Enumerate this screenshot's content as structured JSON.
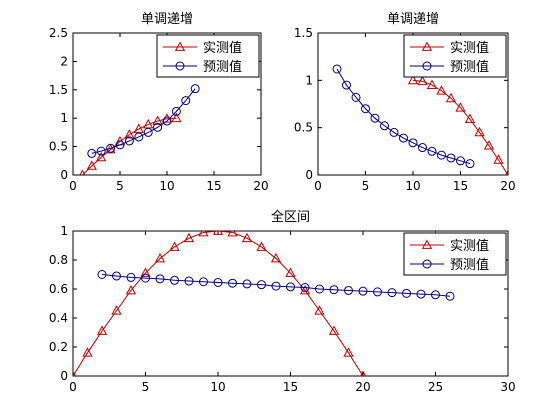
{
  "chart_data": [
    {
      "type": "line",
      "title": "单调递增",
      "xlabel": "",
      "ylabel": "",
      "xlim": [
        0,
        20
      ],
      "ylim": [
        0,
        2.5
      ],
      "xticks": [
        0,
        5,
        10,
        15,
        20
      ],
      "yticks": [
        0,
        0.5,
        1,
        1.5,
        2,
        2.5
      ],
      "legend": "top-right",
      "grid": false,
      "series": [
        {
          "name": "实测值",
          "color": "#c00000",
          "marker": "triangle",
          "x": [
            1,
            2,
            3,
            4,
            5,
            6,
            7,
            8,
            9,
            10,
            11
          ],
          "y": [
            0.0,
            0.16,
            0.31,
            0.45,
            0.59,
            0.71,
            0.81,
            0.89,
            0.95,
            0.99,
            1.0
          ]
        },
        {
          "name": "预测值",
          "color": "#000080",
          "marker": "circle",
          "x": [
            2,
            3,
            4,
            5,
            6,
            7,
            8,
            9,
            10,
            11,
            12,
            13
          ],
          "y": [
            0.38,
            0.42,
            0.47,
            0.53,
            0.6,
            0.67,
            0.75,
            0.84,
            0.95,
            1.12,
            1.31,
            1.52
          ]
        }
      ]
    },
    {
      "type": "line",
      "title": "单调递增",
      "xlabel": "",
      "ylabel": "",
      "xlim": [
        0,
        20
      ],
      "ylim": [
        0,
        1.5
      ],
      "xticks": [
        0,
        5,
        10,
        15,
        20
      ],
      "yticks": [
        0,
        0.5,
        1,
        1.5
      ],
      "legend": "top-right",
      "grid": false,
      "series": [
        {
          "name": "实测值",
          "color": "#c00000",
          "marker": "triangle",
          "x": [
            10,
            11,
            12,
            13,
            14,
            15,
            16,
            17,
            18,
            19,
            20
          ],
          "y": [
            1.0,
            0.99,
            0.95,
            0.89,
            0.81,
            0.71,
            0.59,
            0.45,
            0.31,
            0.16,
            0.0
          ]
        },
        {
          "name": "预测值",
          "color": "#000080",
          "marker": "circle",
          "x": [
            2,
            3,
            4,
            5,
            6,
            7,
            8,
            9,
            10,
            11,
            12,
            13,
            14,
            15,
            16
          ],
          "y": [
            1.12,
            0.95,
            0.82,
            0.7,
            0.6,
            0.52,
            0.45,
            0.39,
            0.34,
            0.29,
            0.25,
            0.21,
            0.18,
            0.15,
            0.12
          ]
        }
      ]
    },
    {
      "type": "line",
      "title": "全区间",
      "xlabel": "",
      "ylabel": "",
      "xlim": [
        0,
        30
      ],
      "ylim": [
        0,
        1
      ],
      "xticks": [
        0,
        5,
        10,
        15,
        20,
        25,
        30
      ],
      "yticks": [
        0,
        0.2,
        0.4,
        0.6,
        0.8,
        1
      ],
      "legend": "top-right",
      "grid": false,
      "series": [
        {
          "name": "实测值",
          "color": "#c00000",
          "marker": "triangle",
          "x": [
            0,
            1,
            2,
            3,
            4,
            5,
            6,
            7,
            8,
            9,
            10,
            11,
            12,
            13,
            14,
            15,
            16,
            17,
            18,
            19,
            20
          ],
          "y": [
            0.0,
            0.16,
            0.31,
            0.45,
            0.59,
            0.71,
            0.81,
            0.89,
            0.95,
            0.99,
            1.0,
            0.99,
            0.95,
            0.89,
            0.81,
            0.71,
            0.59,
            0.45,
            0.31,
            0.16,
            0.0
          ]
        },
        {
          "name": "预测值",
          "color": "#000080",
          "marker": "circle",
          "x": [
            2,
            3,
            4,
            5,
            6,
            7,
            8,
            9,
            10,
            11,
            12,
            13,
            14,
            15,
            16,
            17,
            18,
            19,
            20,
            21,
            22,
            23,
            24,
            25,
            26
          ],
          "y": [
            0.7,
            0.69,
            0.68,
            0.675,
            0.67,
            0.66,
            0.655,
            0.65,
            0.645,
            0.64,
            0.635,
            0.63,
            0.62,
            0.615,
            0.61,
            0.6,
            0.595,
            0.59,
            0.585,
            0.58,
            0.575,
            0.57,
            0.565,
            0.56,
            0.55
          ]
        }
      ]
    }
  ]
}
